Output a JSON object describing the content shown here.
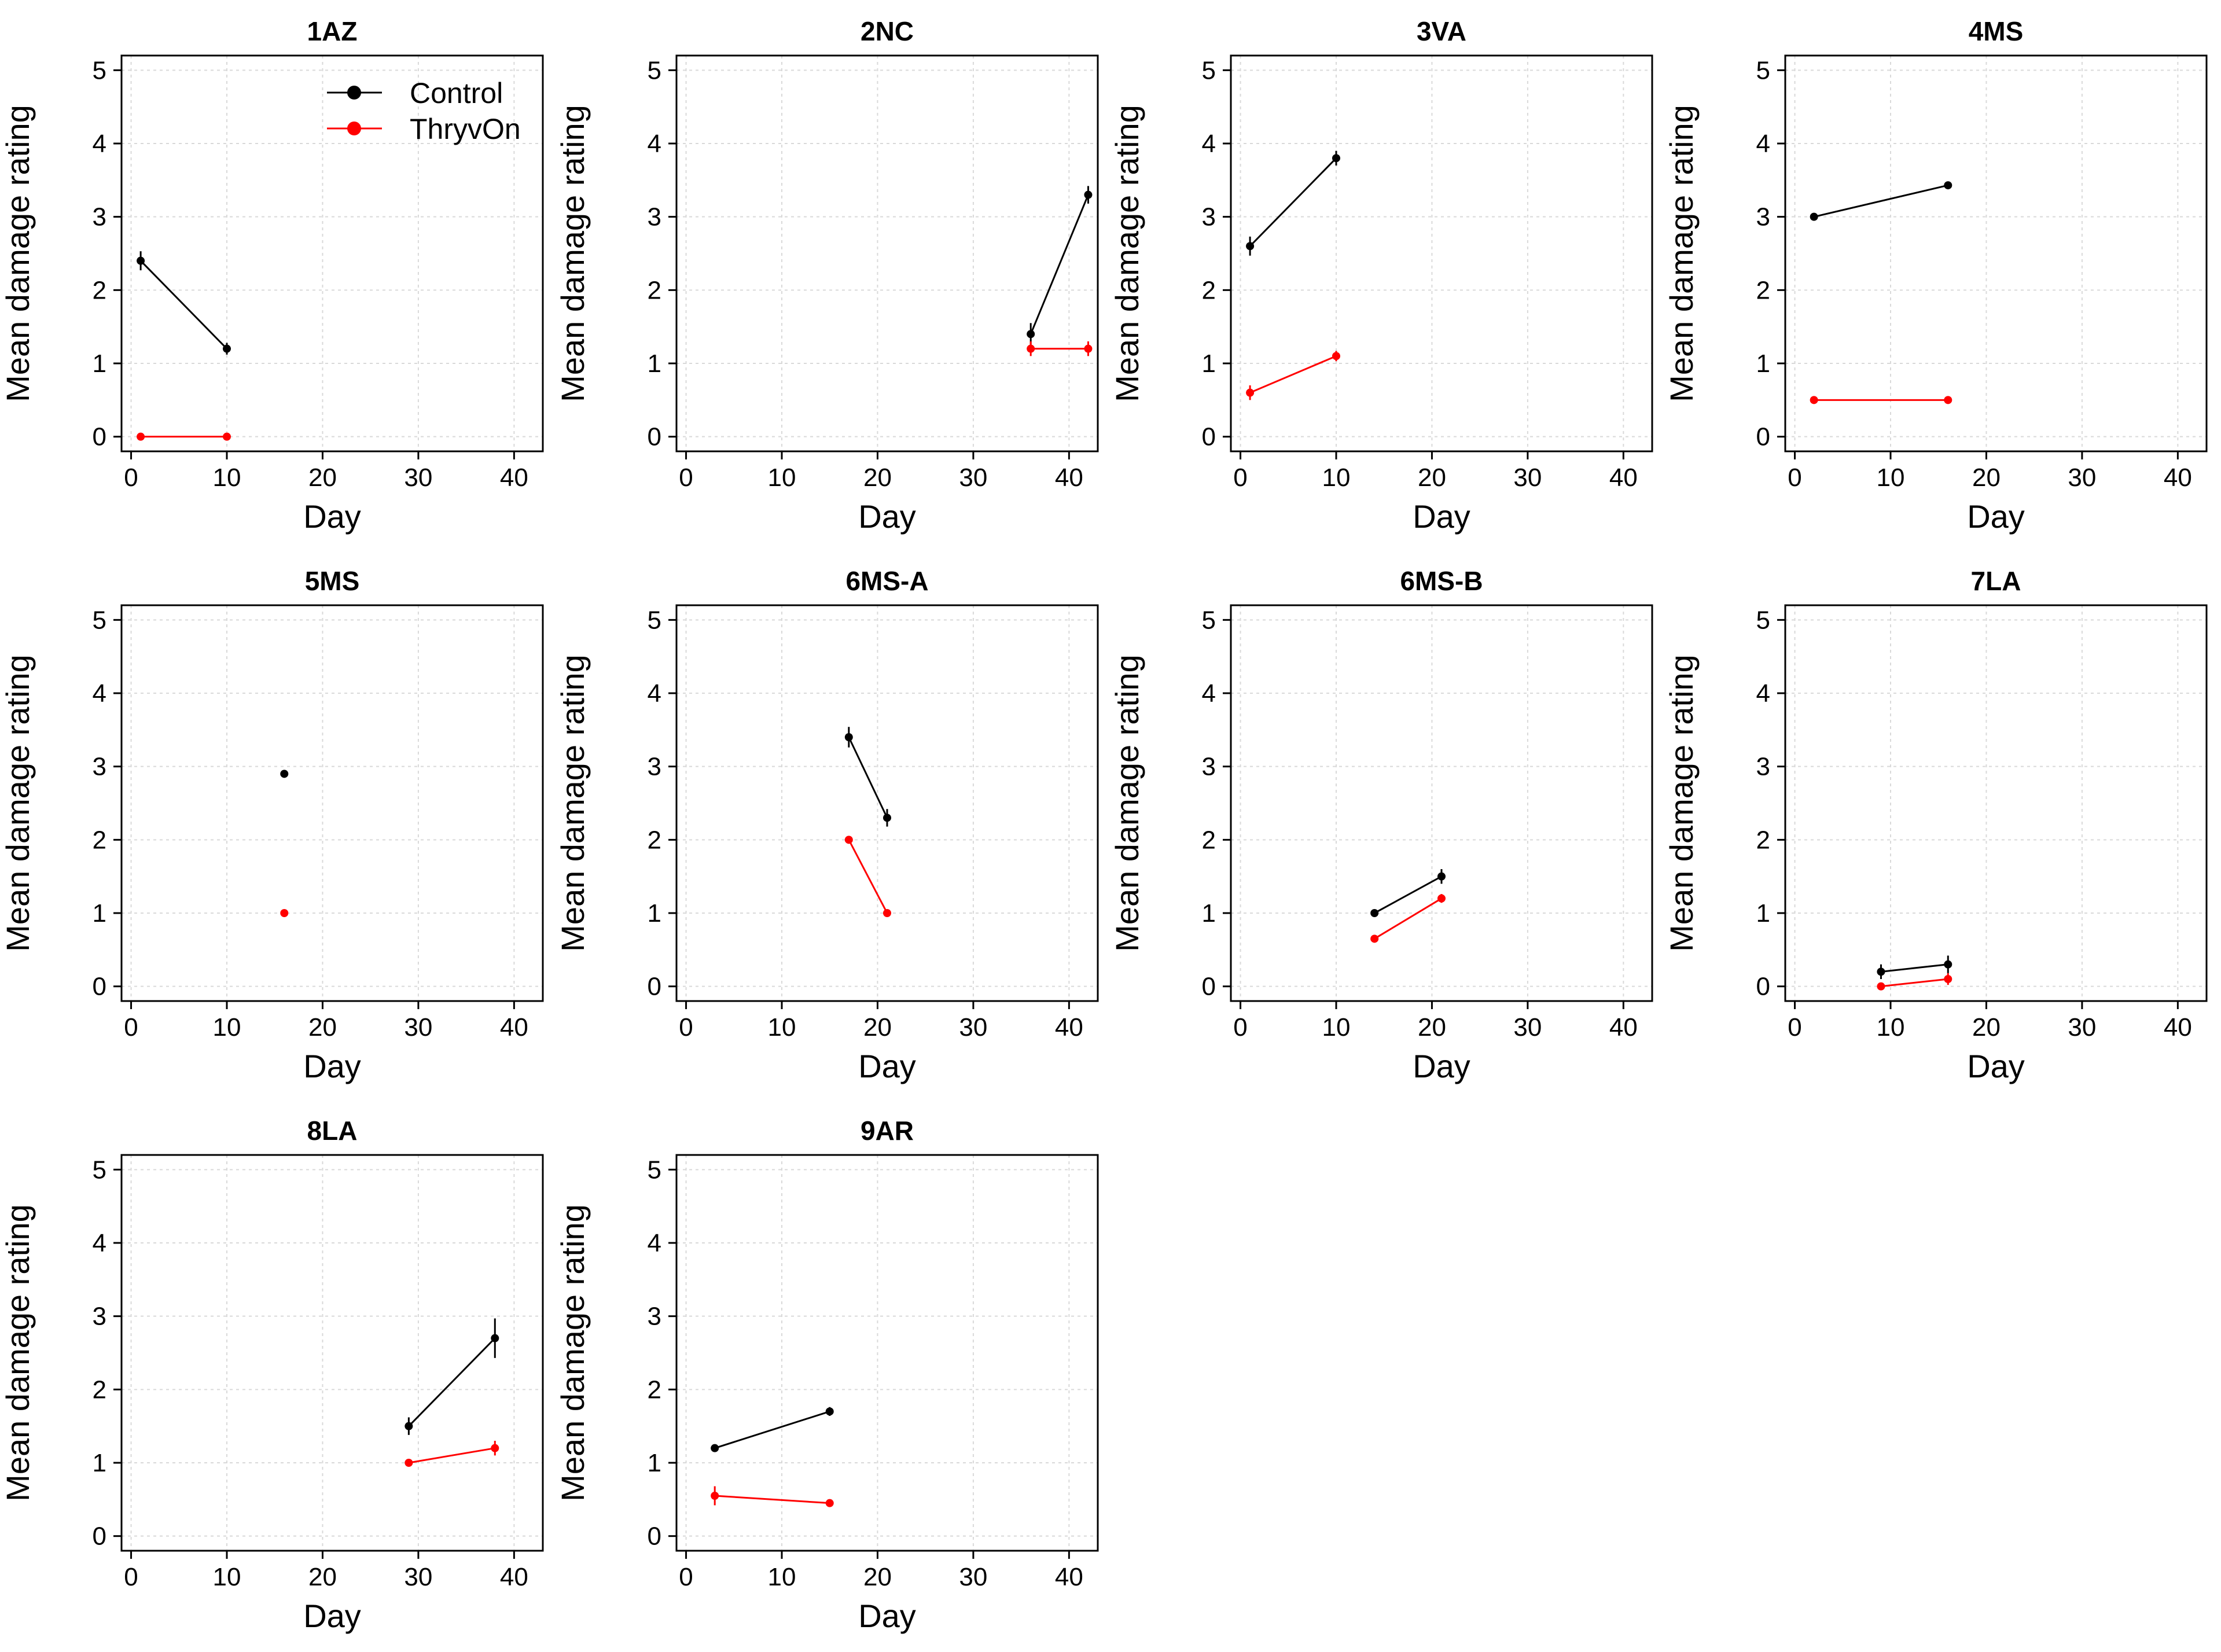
{
  "figure": {
    "xlabel": "Day",
    "ylabel": "Mean damage rating",
    "xlim": [
      -1,
      43
    ],
    "ylim": [
      -0.2,
      5.2
    ],
    "xticks": [
      0,
      10,
      20,
      30,
      40
    ],
    "yticks": [
      0,
      1,
      2,
      3,
      4,
      5
    ],
    "colors": {
      "Control": "#000000",
      "ThryvOn": "#ff0000"
    }
  },
  "legend": [
    {
      "name": "Control",
      "color": "#000000"
    },
    {
      "name": "ThryvOn",
      "color": "#ff0000"
    }
  ],
  "chart_data": [
    {
      "type": "line",
      "title": "1AZ",
      "xlabel": "Day",
      "ylabel": "Mean damage rating",
      "xlim": [
        -1,
        43
      ],
      "ylim": [
        -0.2,
        5.2
      ],
      "grid": true,
      "series": [
        {
          "name": "Control",
          "x": [
            1,
            10
          ],
          "values": [
            2.4,
            1.2
          ],
          "err": [
            0.13,
            0.08
          ]
        },
        {
          "name": "ThryvOn",
          "x": [
            1,
            10
          ],
          "values": [
            0.0,
            0.0
          ],
          "err": [
            0.02,
            0.02
          ]
        }
      ]
    },
    {
      "type": "line",
      "title": "2NC",
      "xlabel": "Day",
      "ylabel": "Mean damage rating",
      "xlim": [
        -1,
        43
      ],
      "ylim": [
        -0.2,
        5.2
      ],
      "grid": true,
      "series": [
        {
          "name": "Control",
          "x": [
            36,
            42
          ],
          "values": [
            1.4,
            3.3
          ],
          "err": [
            0.15,
            0.12
          ]
        },
        {
          "name": "ThryvOn",
          "x": [
            36,
            42
          ],
          "values": [
            1.2,
            1.2
          ],
          "err": [
            0.1,
            0.1
          ]
        }
      ]
    },
    {
      "type": "line",
      "title": "3VA",
      "xlabel": "Day",
      "ylabel": "Mean damage rating",
      "xlim": [
        -1,
        43
      ],
      "ylim": [
        -0.2,
        5.2
      ],
      "grid": true,
      "series": [
        {
          "name": "Control",
          "x": [
            1,
            10
          ],
          "values": [
            2.6,
            3.8
          ],
          "err": [
            0.13,
            0.1
          ]
        },
        {
          "name": "ThryvOn",
          "x": [
            1,
            10
          ],
          "values": [
            0.6,
            1.1
          ],
          "err": [
            0.1,
            0.07
          ]
        }
      ]
    },
    {
      "type": "line",
      "title": "4MS",
      "xlabel": "Day",
      "ylabel": "Mean damage rating",
      "xlim": [
        -1,
        43
      ],
      "ylim": [
        -0.2,
        5.2
      ],
      "grid": true,
      "series": [
        {
          "name": "Control",
          "x": [
            2,
            16
          ],
          "values": [
            3.0,
            3.43
          ],
          "err": [
            0.03,
            0.05
          ]
        },
        {
          "name": "ThryvOn",
          "x": [
            2,
            16
          ],
          "values": [
            0.5,
            0.5
          ],
          "err": [
            0.02,
            0.03
          ]
        }
      ]
    },
    {
      "type": "line",
      "title": "5MS",
      "xlabel": "Day",
      "ylabel": "Mean damage rating",
      "xlim": [
        -1,
        43
      ],
      "ylim": [
        -0.2,
        5.2
      ],
      "grid": true,
      "series": [
        {
          "name": "Control",
          "x": [
            16
          ],
          "values": [
            2.9
          ],
          "err": [
            0.03
          ]
        },
        {
          "name": "ThryvOn",
          "x": [
            16
          ],
          "values": [
            1.0
          ],
          "err": [
            0.02
          ]
        }
      ]
    },
    {
      "type": "line",
      "title": "6MS-A",
      "xlabel": "Day",
      "ylabel": "Mean damage rating",
      "xlim": [
        -1,
        43
      ],
      "ylim": [
        -0.2,
        5.2
      ],
      "grid": true,
      "series": [
        {
          "name": "Control",
          "x": [
            17,
            21
          ],
          "values": [
            3.4,
            2.3
          ],
          "err": [
            0.14,
            0.12
          ]
        },
        {
          "name": "ThryvOn",
          "x": [
            17,
            21
          ],
          "values": [
            2.0,
            1.0
          ],
          "err": [
            0.03,
            0.03
          ]
        }
      ]
    },
    {
      "type": "line",
      "title": "6MS-B",
      "xlabel": "Day",
      "ylabel": "Mean damage rating",
      "xlim": [
        -1,
        43
      ],
      "ylim": [
        -0.2,
        5.2
      ],
      "grid": true,
      "series": [
        {
          "name": "Control",
          "x": [
            14,
            21
          ],
          "values": [
            1.0,
            1.5
          ],
          "err": [
            0.03,
            0.1
          ]
        },
        {
          "name": "ThryvOn",
          "x": [
            14,
            21
          ],
          "values": [
            0.65,
            1.2
          ],
          "err": [
            0.03,
            0.06
          ]
        }
      ]
    },
    {
      "type": "line",
      "title": "7LA",
      "xlabel": "Day",
      "ylabel": "Mean damage rating",
      "xlim": [
        -1,
        43
      ],
      "ylim": [
        -0.2,
        5.2
      ],
      "grid": true,
      "series": [
        {
          "name": "Control",
          "x": [
            9,
            16
          ],
          "values": [
            0.2,
            0.3
          ],
          "err": [
            0.1,
            0.12
          ]
        },
        {
          "name": "ThryvOn",
          "x": [
            9,
            16
          ],
          "values": [
            0.0,
            0.1
          ],
          "err": [
            0.02,
            0.08
          ]
        }
      ]
    },
    {
      "type": "line",
      "title": "8LA",
      "xlabel": "Day",
      "ylabel": "Mean damage rating",
      "xlim": [
        -1,
        43
      ],
      "ylim": [
        -0.2,
        5.2
      ],
      "grid": true,
      "series": [
        {
          "name": "Control",
          "x": [
            29,
            38
          ],
          "values": [
            1.5,
            2.7
          ],
          "err": [
            0.12,
            0.27
          ]
        },
        {
          "name": "ThryvOn",
          "x": [
            29,
            38
          ],
          "values": [
            1.0,
            1.2
          ],
          "err": [
            0.03,
            0.1
          ]
        }
      ]
    },
    {
      "type": "line",
      "title": "9AR",
      "xlabel": "Day",
      "ylabel": "Mean damage rating",
      "xlim": [
        -1,
        43
      ],
      "ylim": [
        -0.2,
        5.2
      ],
      "grid": true,
      "series": [
        {
          "name": "Control",
          "x": [
            3,
            15
          ],
          "values": [
            1.2,
            1.7
          ],
          "err": [
            0.05,
            0.06
          ]
        },
        {
          "name": "ThryvOn",
          "x": [
            3,
            15
          ],
          "values": [
            0.55,
            0.45
          ],
          "err": [
            0.13,
            0.03
          ]
        }
      ]
    }
  ]
}
